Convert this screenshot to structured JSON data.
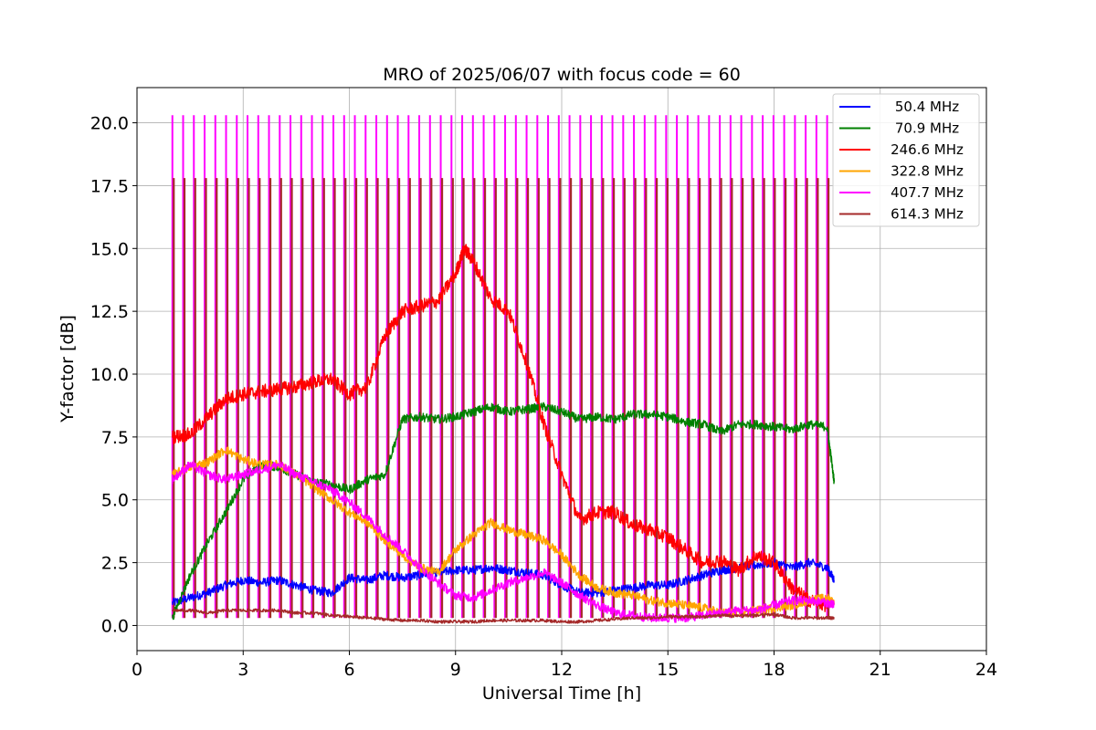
{
  "chart_data": {
    "type": "line",
    "title": "MRO of 2025/06/07 with focus code = 60",
    "xlabel": "Universal Time [h]",
    "ylabel": "Y-factor [dB]",
    "xlim": [
      0,
      24
    ],
    "ylim": [
      -1.0,
      21.4
    ],
    "xticks": [
      0,
      3,
      6,
      9,
      12,
      15,
      18,
      21,
      24
    ],
    "yticks": [
      0.0,
      2.5,
      5.0,
      7.5,
      10.0,
      12.5,
      15.0,
      17.5,
      20.0
    ],
    "xtick_labels": [
      "0",
      "3",
      "6",
      "9",
      "12",
      "15",
      "18",
      "21",
      "24"
    ],
    "ytick_labels": [
      "0.0",
      "2.5",
      "5.0",
      "7.5",
      "10.0",
      "12.5",
      "15.0",
      "17.5",
      "20.0"
    ],
    "grid": true,
    "legend_position": "top-right",
    "calibration_pulses": {
      "start_hour": 1.0,
      "end_hour": 19.5,
      "count": 62,
      "peak_407_7_MHz": 20.3,
      "peak_614_3_MHz": 17.8
    },
    "series": [
      {
        "name": "50.4 MHz",
        "color": "#0000ff",
        "x": [
          1.0,
          1.5,
          2.0,
          2.5,
          3.0,
          3.5,
          4.0,
          4.5,
          5.0,
          5.5,
          6.0,
          6.5,
          7.0,
          7.5,
          8.0,
          8.5,
          9.0,
          9.5,
          10.0,
          10.5,
          11.0,
          11.5,
          12.0,
          12.5,
          13.0,
          13.5,
          14.0,
          14.5,
          15.0,
          15.5,
          16.0,
          16.5,
          17.0,
          17.5,
          18.0,
          18.5,
          19.0,
          19.5,
          19.7
        ],
        "y": [
          0.9,
          1.1,
          1.3,
          1.6,
          1.8,
          1.7,
          1.8,
          1.6,
          1.4,
          1.3,
          1.9,
          1.8,
          2.0,
          1.9,
          2.0,
          2.1,
          2.2,
          2.2,
          2.3,
          2.2,
          2.1,
          2.0,
          1.6,
          1.3,
          1.3,
          1.4,
          1.5,
          1.6,
          1.6,
          1.8,
          2.0,
          2.2,
          2.3,
          2.4,
          2.5,
          2.3,
          2.5,
          2.3,
          1.8
        ]
      },
      {
        "name": "70.9 MHz",
        "color": "#008000",
        "x": [
          1.0,
          1.5,
          2.0,
          2.5,
          3.0,
          3.5,
          4.0,
          4.5,
          5.0,
          5.5,
          6.0,
          6.5,
          7.0,
          7.5,
          8.0,
          8.5,
          9.0,
          9.5,
          10.0,
          10.5,
          11.0,
          11.5,
          12.0,
          12.5,
          13.0,
          13.5,
          14.0,
          14.5,
          15.0,
          15.5,
          16.0,
          16.5,
          17.0,
          17.5,
          18.0,
          18.5,
          19.0,
          19.5,
          19.7
        ],
        "y": [
          0.3,
          2.0,
          3.3,
          4.5,
          5.8,
          6.4,
          6.3,
          6.0,
          5.7,
          5.6,
          5.4,
          5.8,
          6.0,
          8.2,
          8.3,
          8.2,
          8.3,
          8.5,
          8.7,
          8.5,
          8.6,
          8.7,
          8.5,
          8.2,
          8.3,
          8.2,
          8.4,
          8.4,
          8.3,
          8.1,
          8.0,
          7.7,
          8.0,
          8.0,
          7.9,
          7.8,
          8.0,
          7.9,
          5.7
        ]
      },
      {
        "name": "246.6 MHz",
        "color": "#ff0000",
        "x": [
          1.0,
          1.5,
          2.0,
          2.5,
          3.0,
          3.5,
          4.0,
          4.5,
          5.0,
          5.5,
          6.0,
          6.5,
          7.0,
          7.5,
          8.0,
          8.5,
          9.0,
          9.25,
          9.5,
          10.0,
          10.5,
          11.0,
          11.5,
          12.0,
          12.5,
          13.0,
          13.5,
          14.0,
          14.5,
          15.0,
          15.5,
          16.0,
          16.5,
          17.0,
          17.5,
          18.0,
          18.5,
          19.0,
          19.5
        ],
        "y": [
          7.5,
          7.6,
          8.3,
          9.0,
          9.2,
          9.3,
          9.4,
          9.5,
          9.7,
          9.8,
          9.2,
          9.5,
          11.5,
          12.5,
          12.7,
          12.9,
          14.0,
          15.0,
          14.5,
          13.0,
          12.5,
          10.5,
          8.0,
          6.0,
          4.2,
          4.5,
          4.5,
          4.0,
          3.8,
          3.5,
          3.0,
          2.5,
          2.6,
          2.2,
          2.8,
          2.5,
          1.5,
          1.0,
          0.8
        ]
      },
      {
        "name": "322.8 MHz",
        "color": "#ffa500",
        "x": [
          1.0,
          1.5,
          2.0,
          2.5,
          3.0,
          3.5,
          4.0,
          4.5,
          5.0,
          5.5,
          6.0,
          6.5,
          7.0,
          7.5,
          8.0,
          8.5,
          9.0,
          9.5,
          10.0,
          10.5,
          11.0,
          11.5,
          12.0,
          12.5,
          13.0,
          13.5,
          14.0,
          14.5,
          15.0,
          15.5,
          16.0,
          16.5,
          17.0,
          17.5,
          18.0,
          18.5,
          19.0,
          19.5,
          19.7
        ],
        "y": [
          6.0,
          6.3,
          6.5,
          7.0,
          6.6,
          6.4,
          6.4,
          6.0,
          5.5,
          5.0,
          4.5,
          4.1,
          3.4,
          2.8,
          2.3,
          2.1,
          3.0,
          3.6,
          4.1,
          3.8,
          3.6,
          3.4,
          2.8,
          2.0,
          1.5,
          1.3,
          1.2,
          1.0,
          0.9,
          0.8,
          0.7,
          0.5,
          0.5,
          0.6,
          0.7,
          0.8,
          1.0,
          1.1,
          0.9
        ]
      },
      {
        "name": "407.7 MHz",
        "color": "#ff00ff",
        "x": [
          1.0,
          1.5,
          2.0,
          2.5,
          3.0,
          3.5,
          4.0,
          4.5,
          5.0,
          5.5,
          6.0,
          6.5,
          7.0,
          7.5,
          8.0,
          8.5,
          9.0,
          9.5,
          10.0,
          10.5,
          11.0,
          11.5,
          12.0,
          12.5,
          13.0,
          13.5,
          14.0,
          14.5,
          15.0,
          15.5,
          16.0,
          16.5,
          17.0,
          17.5,
          18.0,
          18.5,
          19.0,
          19.5,
          19.7
        ],
        "y": [
          5.8,
          6.4,
          6.0,
          5.8,
          6.0,
          6.2,
          6.4,
          6.0,
          5.7,
          5.4,
          4.9,
          4.3,
          3.6,
          3.0,
          2.3,
          1.7,
          1.2,
          1.1,
          1.4,
          1.7,
          1.9,
          2.1,
          1.7,
          1.2,
          0.8,
          0.5,
          0.4,
          0.3,
          0.3,
          0.3,
          0.4,
          0.5,
          0.6,
          0.6,
          0.8,
          1.0,
          1.0,
          0.9,
          0.8
        ]
      },
      {
        "name": "614.3 MHz",
        "color": "#a52a2a",
        "x": [
          1.0,
          1.5,
          2.0,
          2.5,
          3.0,
          3.5,
          4.0,
          4.5,
          5.0,
          5.5,
          6.0,
          6.5,
          7.0,
          7.5,
          8.0,
          8.5,
          9.0,
          9.5,
          10.0,
          10.5,
          11.0,
          11.5,
          12.0,
          12.5,
          13.0,
          13.5,
          14.0,
          14.5,
          15.0,
          15.5,
          16.0,
          16.5,
          17.0,
          17.5,
          18.0,
          18.5,
          19.0,
          19.5,
          19.7
        ],
        "y": [
          0.6,
          0.6,
          0.5,
          0.6,
          0.6,
          0.6,
          0.6,
          0.5,
          0.5,
          0.4,
          0.35,
          0.3,
          0.25,
          0.2,
          0.2,
          0.15,
          0.15,
          0.15,
          0.2,
          0.2,
          0.2,
          0.2,
          0.15,
          0.15,
          0.2,
          0.25,
          0.3,
          0.3,
          0.35,
          0.35,
          0.35,
          0.4,
          0.4,
          0.4,
          0.45,
          0.3,
          0.3,
          0.3,
          0.3
        ]
      }
    ]
  }
}
